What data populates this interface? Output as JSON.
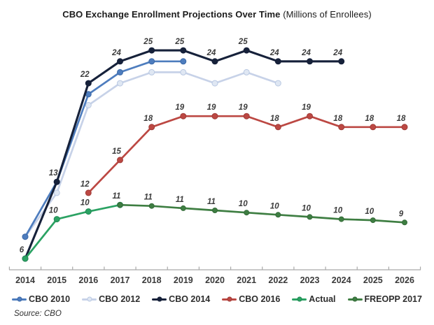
{
  "title": {
    "main": "CBO Exchange Enrollment Projections Over Time",
    "sub": " (Millions of Enrollees)"
  },
  "source": {
    "label": "Source:",
    "value": "CBO"
  },
  "colors": {
    "axis": "#a9a9a9",
    "data_label": "#3c3c3c",
    "cbo_2010": "#4e7dbe",
    "cbo_2012": "#c7d2e8",
    "cbo_2014": "#16213a",
    "cbo_2016": "#bc4843",
    "actual": "#2ba263",
    "freopp_2017": "#3e7e42"
  },
  "chart_data": {
    "type": "line",
    "title": "CBO Exchange Enrollment Projections Over Time",
    "subtitle": "(Millions of Enrollees)",
    "x": [
      2014,
      2015,
      2016,
      2017,
      2018,
      2019,
      2020,
      2021,
      2022,
      2023,
      2024,
      2025,
      2026
    ],
    "xlabel": "",
    "ylabel": "Millions of Enrollees",
    "y_axis_shown": false,
    "grid": false,
    "legend_position": "bottom",
    "source": "CBO",
    "series": [
      {
        "name": "CBO 2010",
        "color": "#4e7dbe",
        "marker_fill": "#4e7dbe",
        "marker_stroke": "#3c69a8",
        "start_year": 2014,
        "values": [
          8,
          13,
          21,
          23,
          24,
          24
        ],
        "labels": [
          "",
          "",
          "",
          "",
          "",
          ""
        ]
      },
      {
        "name": "CBO 2012",
        "color": "#c7d2e8",
        "marker_fill": "#dfe7f3",
        "marker_stroke": "#b9c8e2",
        "start_year": 2014,
        "values": [
          8,
          12,
          20,
          22,
          23,
          23,
          22,
          23,
          22
        ],
        "labels": [
          "",
          "",
          "",
          "",
          "",
          "",
          "",
          "",
          ""
        ]
      },
      {
        "name": "CBO 2014",
        "color": "#16213a",
        "marker_fill": "#16213a",
        "marker_stroke": "#16213a",
        "start_year": 2014,
        "values": [
          6,
          13,
          22,
          24,
          25,
          25,
          24,
          25,
          24,
          24,
          24
        ],
        "labels": [
          "",
          "13",
          "22",
          "24",
          "25",
          "25",
          "24",
          "25",
          "24",
          "24",
          "24"
        ]
      },
      {
        "name": "CBO 2016",
        "color": "#bc4843",
        "marker_fill": "#bc4843",
        "marker_stroke": "#a03c38",
        "start_year": 2016,
        "values": [
          12,
          15,
          18,
          19,
          19,
          19,
          18,
          19,
          18,
          18,
          18
        ],
        "labels": [
          "12",
          "15",
          "18",
          "19",
          "19",
          "19",
          "18",
          "19",
          "18",
          "18",
          "18"
        ]
      },
      {
        "name": "Actual",
        "color": "#2ba263",
        "marker_fill": "#2ba263",
        "marker_stroke": "#1f8a52",
        "start_year": 2014,
        "values": [
          6,
          10,
          10,
          11
        ],
        "plot_values": [
          6,
          9.6,
          10.3,
          10.9
        ],
        "labels": [
          "6",
          "10",
          "10",
          "11"
        ]
      },
      {
        "name": "FREOPP 2017",
        "color": "#3e7e42",
        "marker_fill": "#3e7e42",
        "marker_stroke": "#356b39",
        "start_year": 2017,
        "values": [
          11,
          11,
          11,
          11,
          10,
          10,
          10,
          10,
          10,
          9
        ],
        "plot_values": [
          10.9,
          10.8,
          10.6,
          10.4,
          10.2,
          10.0,
          9.8,
          9.6,
          9.5,
          9.3
        ],
        "labels": [
          "",
          "11",
          "11",
          "11",
          "10",
          "10",
          "10",
          "10",
          "10",
          "9"
        ]
      }
    ]
  }
}
